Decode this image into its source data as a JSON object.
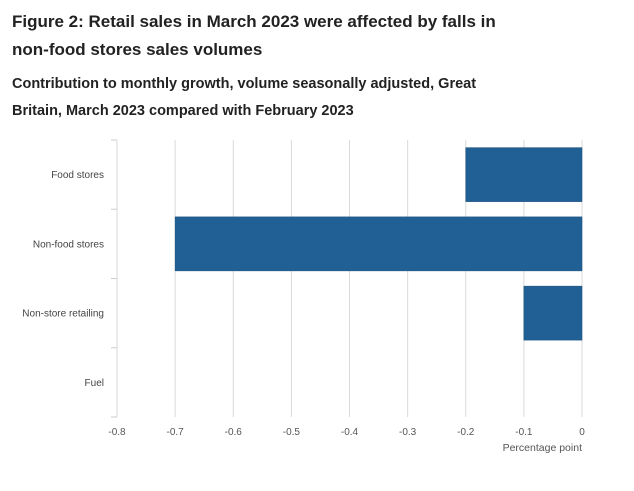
{
  "figure": {
    "title": "Figure 2: Retail sales in March 2023 were affected by falls in non-food stores sales volumes",
    "subtitle": "Contribution to monthly growth, volume seasonally adjusted, Great Britain, March 2023 compared with February 2023"
  },
  "chart_data": {
    "type": "bar",
    "orientation": "horizontal",
    "categories": [
      "Food stores",
      "Non-food stores",
      "Non-store retailing",
      "Fuel"
    ],
    "values": [
      -0.2,
      -0.7,
      -0.1,
      0.0
    ],
    "xlabel": "Percentage point",
    "ylabel": "",
    "xlim": [
      -0.8,
      0
    ],
    "xticks": [
      "-0.8",
      "-0.7",
      "-0.6",
      "-0.5",
      "-0.4",
      "-0.3",
      "-0.2",
      "-0.1",
      "0"
    ],
    "grid": "vertical",
    "bar_color": "#206095",
    "grid_color": "#d9d9d9"
  }
}
